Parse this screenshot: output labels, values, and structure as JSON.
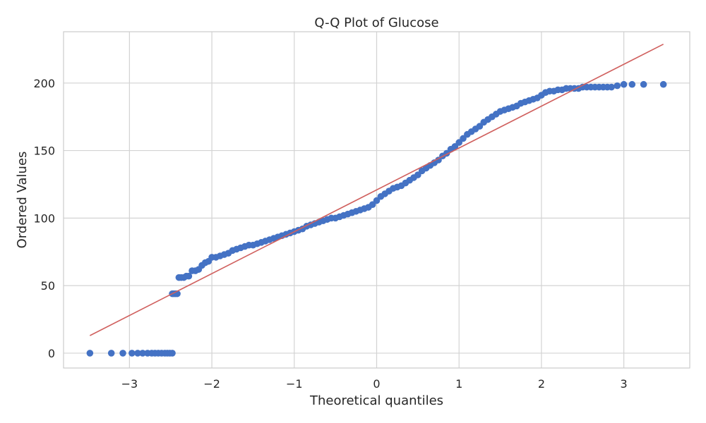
{
  "chart_data": {
    "type": "scatter",
    "title": "Q-Q Plot of Glucose",
    "xlabel": "Theoretical quantiles",
    "ylabel": "Ordered Values",
    "xlim": [
      -3.8,
      3.8
    ],
    "ylim": [
      -11,
      238
    ],
    "x_ticks": [
      -3,
      -2,
      -1,
      0,
      1,
      2,
      3
    ],
    "x_tick_labels": [
      "−3",
      "−2",
      "−1",
      "0",
      "1",
      "2",
      "3"
    ],
    "y_ticks": [
      0,
      50,
      100,
      150,
      200
    ],
    "y_tick_labels": [
      "0",
      "50",
      "100",
      "150",
      "200"
    ],
    "grid": true,
    "colors": {
      "points": "#4472c4",
      "fit_line": "#d0605e",
      "grid": "#d3d3d3",
      "frame": "#cccccc"
    },
    "fit_line": {
      "slope": 31.0,
      "intercept": 120.9,
      "x_start": -3.48,
      "x_end": 3.48
    },
    "series": [
      {
        "values": [
          [
            -3.48,
            0
          ],
          [
            -3.22,
            0
          ],
          [
            -3.08,
            0
          ],
          [
            -2.97,
            0
          ],
          [
            -2.9,
            0
          ],
          [
            -2.84,
            0
          ],
          [
            -2.78,
            0
          ],
          [
            -2.73,
            0
          ],
          [
            -2.69,
            0
          ],
          [
            -2.65,
            0
          ],
          [
            -2.61,
            0
          ],
          [
            -2.57,
            0
          ],
          [
            -2.54,
            0
          ],
          [
            -2.51,
            0
          ],
          [
            -2.48,
            0
          ],
          [
            -2.48,
            44
          ],
          [
            -2.46,
            44
          ],
          [
            -2.44,
            44
          ],
          [
            -2.42,
            44
          ],
          [
            -2.4,
            56
          ],
          [
            -2.37,
            56
          ],
          [
            -2.34,
            56
          ],
          [
            -2.31,
            57
          ],
          [
            -2.28,
            57
          ],
          [
            -2.24,
            61
          ],
          [
            -2.2,
            61
          ],
          [
            -2.16,
            62
          ],
          [
            -2.12,
            65
          ],
          [
            -2.08,
            67
          ],
          [
            -2.04,
            68
          ],
          [
            -2.0,
            71
          ],
          [
            -1.95,
            71
          ],
          [
            -1.9,
            72
          ],
          [
            -1.85,
            73
          ],
          [
            -1.8,
            74
          ],
          [
            -1.75,
            76
          ],
          [
            -1.7,
            77
          ],
          [
            -1.65,
            78
          ],
          [
            -1.6,
            79
          ],
          [
            -1.55,
            80
          ],
          [
            -1.5,
            80
          ],
          [
            -1.45,
            81
          ],
          [
            -1.4,
            82
          ],
          [
            -1.35,
            83
          ],
          [
            -1.3,
            84
          ],
          [
            -1.25,
            85
          ],
          [
            -1.2,
            86
          ],
          [
            -1.15,
            87
          ],
          [
            -1.1,
            88
          ],
          [
            -1.05,
            89
          ],
          [
            -1.0,
            90
          ],
          [
            -0.95,
            91
          ],
          [
            -0.9,
            92
          ],
          [
            -0.85,
            94
          ],
          [
            -0.8,
            95
          ],
          [
            -0.75,
            96
          ],
          [
            -0.7,
            97
          ],
          [
            -0.65,
            98
          ],
          [
            -0.6,
            99
          ],
          [
            -0.55,
            100
          ],
          [
            -0.5,
            100
          ],
          [
            -0.45,
            101
          ],
          [
            -0.4,
            102
          ],
          [
            -0.35,
            103
          ],
          [
            -0.3,
            104
          ],
          [
            -0.25,
            105
          ],
          [
            -0.2,
            106
          ],
          [
            -0.15,
            107
          ],
          [
            -0.1,
            108
          ],
          [
            -0.05,
            110
          ],
          [
            0.0,
            113
          ],
          [
            0.05,
            116
          ],
          [
            0.1,
            118
          ],
          [
            0.15,
            120
          ],
          [
            0.2,
            122
          ],
          [
            0.25,
            123
          ],
          [
            0.3,
            124
          ],
          [
            0.35,
            126
          ],
          [
            0.4,
            128
          ],
          [
            0.45,
            130
          ],
          [
            0.5,
            132
          ],
          [
            0.55,
            135
          ],
          [
            0.6,
            137
          ],
          [
            0.65,
            139
          ],
          [
            0.7,
            141
          ],
          [
            0.75,
            143
          ],
          [
            0.8,
            146
          ],
          [
            0.85,
            148
          ],
          [
            0.9,
            151
          ],
          [
            0.95,
            153
          ],
          [
            1.0,
            156
          ],
          [
            1.05,
            159
          ],
          [
            1.1,
            162
          ],
          [
            1.15,
            164
          ],
          [
            1.2,
            166
          ],
          [
            1.25,
            168
          ],
          [
            1.3,
            171
          ],
          [
            1.35,
            173
          ],
          [
            1.4,
            175
          ],
          [
            1.45,
            177
          ],
          [
            1.5,
            179
          ],
          [
            1.55,
            180
          ],
          [
            1.6,
            181
          ],
          [
            1.65,
            182
          ],
          [
            1.7,
            183
          ],
          [
            1.75,
            185
          ],
          [
            1.8,
            186
          ],
          [
            1.85,
            187
          ],
          [
            1.9,
            188
          ],
          [
            1.95,
            189
          ],
          [
            2.0,
            191
          ],
          [
            2.05,
            193
          ],
          [
            2.1,
            194
          ],
          [
            2.15,
            194
          ],
          [
            2.2,
            195
          ],
          [
            2.25,
            195
          ],
          [
            2.3,
            196
          ],
          [
            2.35,
            196
          ],
          [
            2.4,
            196
          ],
          [
            2.45,
            196
          ],
          [
            2.5,
            197
          ],
          [
            2.55,
            197
          ],
          [
            2.6,
            197
          ],
          [
            2.65,
            197
          ],
          [
            2.7,
            197
          ],
          [
            2.75,
            197
          ],
          [
            2.8,
            197
          ],
          [
            2.85,
            197
          ],
          [
            2.92,
            198
          ],
          [
            3.0,
            199
          ],
          [
            3.1,
            199
          ],
          [
            3.24,
            199
          ],
          [
            3.48,
            199
          ]
        ]
      }
    ]
  }
}
